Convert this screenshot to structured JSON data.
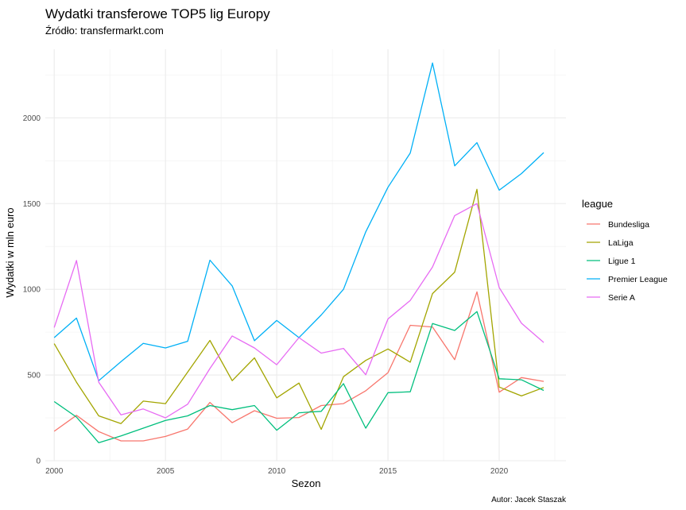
{
  "chart_data": {
    "type": "line",
    "title": "Wydatki transferowe TOP5 lig Europy",
    "subtitle": "Źródło: transfermarkt.com",
    "xlabel": "Sezon",
    "ylabel": "Wydatki w mln euro",
    "caption": "Autor: Jacek Staszak",
    "legend_title": "league",
    "legend_position": "right",
    "grid": true,
    "xlim": [
      1999.6,
      2023.0
    ],
    "ylim": [
      0,
      2400
    ],
    "x_ticks": [
      2000,
      2005,
      2010,
      2015,
      2020
    ],
    "y_ticks": [
      0,
      500,
      1000,
      1500,
      2000
    ],
    "x": [
      2000,
      2001,
      2002,
      2003,
      2004,
      2005,
      2006,
      2007,
      2008,
      2009,
      2010,
      2011,
      2012,
      2013,
      2014,
      2015,
      2016,
      2017,
      2018,
      2019,
      2020,
      2021,
      2022
    ],
    "series": [
      {
        "name": "Bundesliga",
        "color": "#F8766D",
        "values": [
          172,
          265,
          170,
          116,
          116,
          142,
          185,
          340,
          222,
          292,
          248,
          252,
          322,
          333,
          408,
          514,
          790,
          780,
          590,
          985,
          400,
          485,
          463
        ]
      },
      {
        "name": "LaLiga",
        "color": "#A3A500",
        "values": [
          683,
          458,
          262,
          217,
          348,
          333,
          517,
          702,
          467,
          600,
          367,
          453,
          183,
          490,
          585,
          652,
          575,
          975,
          1100,
          1583,
          430,
          378,
          427
        ]
      },
      {
        "name": "Ligue 1",
        "color": "#00BF7D",
        "values": [
          345,
          255,
          105,
          145,
          190,
          235,
          262,
          322,
          298,
          322,
          178,
          280,
          288,
          450,
          190,
          397,
          402,
          800,
          760,
          870,
          478,
          472,
          410
        ]
      },
      {
        "name": "Premier League",
        "color": "#00B0F6",
        "values": [
          718,
          832,
          467,
          578,
          685,
          658,
          697,
          1170,
          1020,
          700,
          818,
          718,
          850,
          1000,
          1335,
          1595,
          1795,
          2320,
          1720,
          1855,
          1578,
          1675,
          1797
        ]
      },
      {
        "name": "Serie A",
        "color": "#E76BF3",
        "values": [
          777,
          1168,
          458,
          268,
          302,
          250,
          330,
          538,
          728,
          658,
          560,
          718,
          628,
          655,
          502,
          827,
          935,
          1130,
          1430,
          1500,
          1010,
          802,
          690
        ]
      }
    ]
  }
}
